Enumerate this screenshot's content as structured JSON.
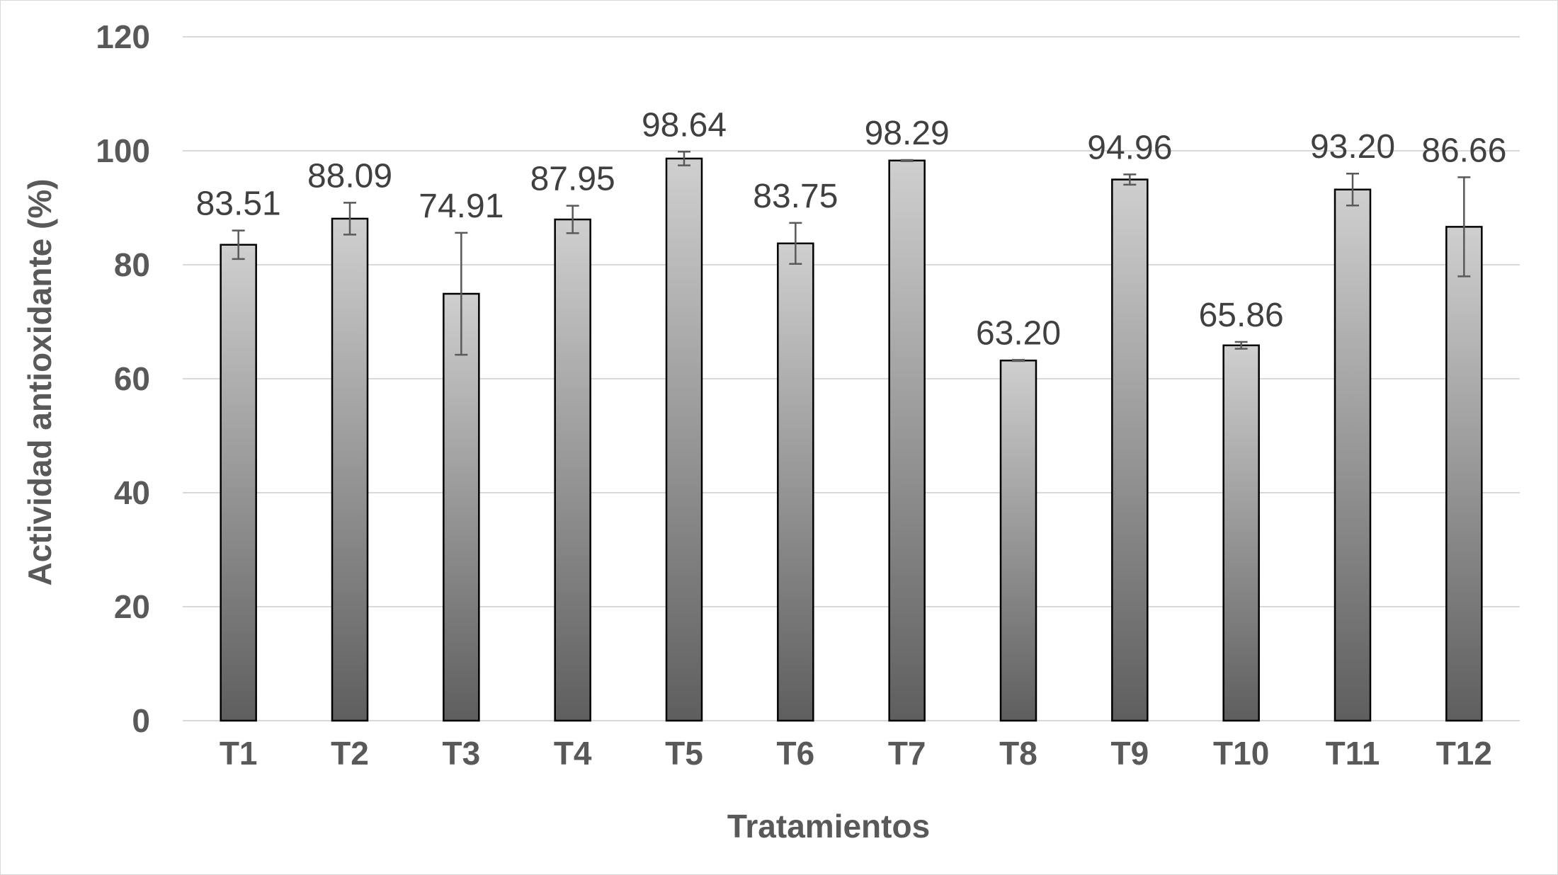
{
  "chart_data": {
    "type": "bar",
    "categories": [
      "T1",
      "T2",
      "T3",
      "T4",
      "T5",
      "T6",
      "T7",
      "T8",
      "T9",
      "T10",
      "T11",
      "T12"
    ],
    "series": [
      {
        "values": [
          83.51,
          88.09,
          74.91,
          87.95,
          98.64,
          83.75,
          98.29,
          63.2,
          94.96,
          65.86,
          93.2,
          86.66
        ],
        "labels": [
          "83.51",
          "88.09",
          "74.91",
          "87.95",
          "98.64",
          "83.75",
          "98.29",
          "63.20",
          "94.96",
          "65.86",
          "93.20",
          "86.66"
        ],
        "error": [
          2.5,
          2.8,
          10.7,
          2.4,
          1.2,
          3.6,
          0.1,
          0.1,
          0.9,
          0.6,
          2.8,
          8.7
        ]
      }
    ],
    "xlabel": "Tratamientos",
    "ylabel": "Actividad antioxidante (%)",
    "ylim": [
      0,
      120
    ],
    "yticks": [
      "0",
      "20",
      "40",
      "60",
      "80",
      "100",
      "120"
    ],
    "grid": true,
    "legend": "none",
    "colors": {
      "bar_top": "#cfcfcf",
      "bar_bottom": "#5e5e5e",
      "bar_outline": "#000000",
      "gridline": "#d9d9d9",
      "axis_text": "#595959",
      "label_text": "#404040"
    }
  }
}
